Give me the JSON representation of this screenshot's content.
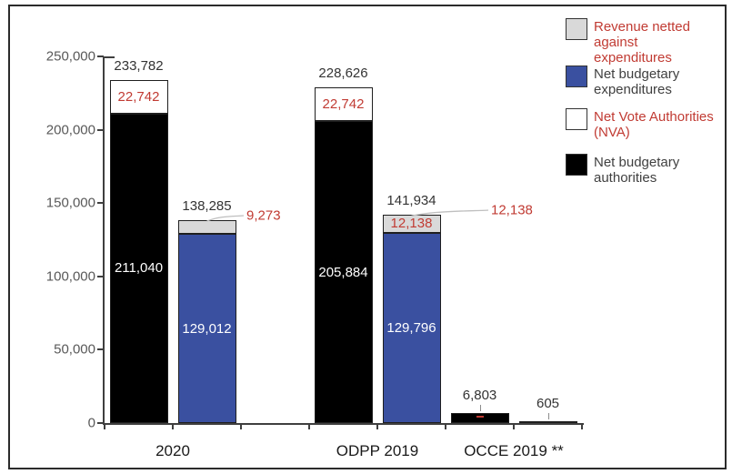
{
  "colors": {
    "blue": "#3A50A0",
    "gray": "#D9D9D9",
    "black": "#000000",
    "white": "#FFFFFF",
    "red": "#C13B33",
    "dark": "#404040",
    "axis": "#3F3F3F",
    "tick_label": "#595959",
    "total_label": "#333333",
    "leader": "#BFBFBF",
    "leader_dark": "#8C8C8C"
  },
  "legend": {
    "items": [
      {
        "label": "Revenue netted against\nexpenditures",
        "swatch": "gray",
        "text_color": "red"
      },
      {
        "label": "Net budgetary\nexpenditures",
        "swatch": "blue",
        "text_color": "dark"
      },
      {
        "label": "Net Vote Authorities\n(NVA)",
        "swatch": "white",
        "text_color": "red"
      },
      {
        "label": "Net budgetary\nauthorities",
        "swatch": "black",
        "text_color": "dark"
      }
    ]
  },
  "chart_data": {
    "type": "bar",
    "stacked": true,
    "title": "",
    "grid": false,
    "legend_position": "top-right",
    "ylim": [
      0,
      250000
    ],
    "yticks": [
      0,
      50000,
      100000,
      150000,
      200000,
      250000
    ],
    "ytick_labels": [
      "0",
      "50,000",
      "100,000",
      "150,000",
      "200,000",
      "250,000"
    ],
    "categories": [
      "2020",
      "ODPP 2019",
      "OCCE 2019 **"
    ],
    "bars": [
      {
        "category": "2020",
        "slot": 0,
        "total": 233782,
        "total_label": "233,782",
        "segments": [
          {
            "series": "Net budgetary authorities",
            "value": 211040,
            "label": "211,040",
            "color": "black",
            "label_color": "white"
          },
          {
            "series": "Net Vote Authorities (NVA)",
            "value": 22742,
            "label": "22,742",
            "color": "white",
            "label_color": "red"
          }
        ]
      },
      {
        "category": "2020",
        "slot": 1,
        "total": 138285,
        "total_label": "138,285",
        "segments": [
          {
            "series": "Net budgetary expenditures",
            "value": 129012,
            "label": "129,012",
            "color": "blue",
            "label_color": "white"
          },
          {
            "series": "Revenue netted against expenditures",
            "value": 9273,
            "label": "9,273",
            "color": "gray",
            "label_color": "red",
            "callout": true
          }
        ]
      },
      {
        "category": "ODPP 2019",
        "slot": 3,
        "total": 228626,
        "total_label": "228,626",
        "segments": [
          {
            "series": "Net budgetary authorities",
            "value": 205884,
            "label": "205,884",
            "color": "black",
            "label_color": "white"
          },
          {
            "series": "Net Vote Authorities (NVA)",
            "value": 22742,
            "label": "22,742",
            "color": "white",
            "label_color": "red"
          }
        ]
      },
      {
        "category": "ODPP 2019",
        "slot": 4,
        "total": 141934,
        "total_label": "141,934",
        "segments": [
          {
            "series": "Net budgetary expenditures",
            "value": 129796,
            "label": "129,796",
            "color": "blue",
            "label_color": "white"
          },
          {
            "series": "Revenue netted against expenditures",
            "value": 12138,
            "label": "12,138",
            "color": "gray",
            "label_color": "red",
            "callout": true
          }
        ]
      },
      {
        "category": "OCCE 2019 **",
        "slot": 5,
        "total": 6803,
        "total_label": "6,803",
        "leader": true,
        "red_mark": true,
        "segments": [
          {
            "series": "Net budgetary authorities",
            "value": 6803,
            "color": "black"
          }
        ]
      },
      {
        "category": "OCCE 2019 **",
        "slot": 6,
        "total": 605,
        "total_label": "605",
        "leader": true,
        "segments": [
          {
            "series": "Net budgetary expenditures",
            "value": 605,
            "color": "blue"
          }
        ]
      }
    ]
  }
}
